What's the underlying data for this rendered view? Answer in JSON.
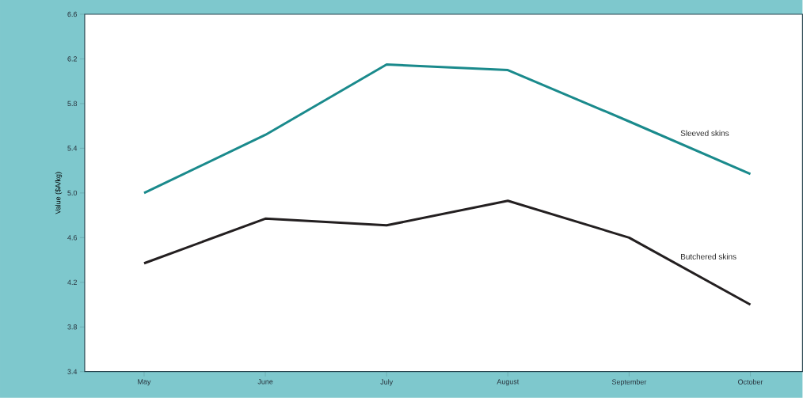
{
  "chart_data": {
    "type": "line",
    "ylabel": "Value ($A/kg)",
    "categories": [
      "May",
      "June",
      "July",
      "August",
      "September",
      "October"
    ],
    "series": [
      {
        "name": "Sleeved skins",
        "color": "#1a8a8c",
        "values": [
          5.0,
          5.52,
          6.15,
          6.1,
          5.64,
          5.17
        ]
      },
      {
        "name": "Butchered skins",
        "color": "#231f20",
        "values": [
          4.37,
          4.77,
          4.71,
          4.93,
          4.6,
          4.0
        ]
      }
    ],
    "ylim": [
      3.4,
      6.6
    ],
    "yticks": [
      {
        "value": 3.4,
        "label": "3.4"
      },
      {
        "value": 3.8,
        "label": "3.8"
      },
      {
        "value": 4.2,
        "label": "4.2"
      },
      {
        "value": 4.6,
        "label": "4.6"
      },
      {
        "value": 5.0,
        "label": "5.0"
      },
      {
        "value": 5.4,
        "label": "5.4"
      },
      {
        "value": 5.8,
        "label": "5.8"
      },
      {
        "value": 6.2,
        "label": "6.2"
      },
      {
        "value": 6.6,
        "label": "6.6"
      }
    ],
    "grid": false,
    "legend": false,
    "marker": "none",
    "line_style": "solid"
  }
}
